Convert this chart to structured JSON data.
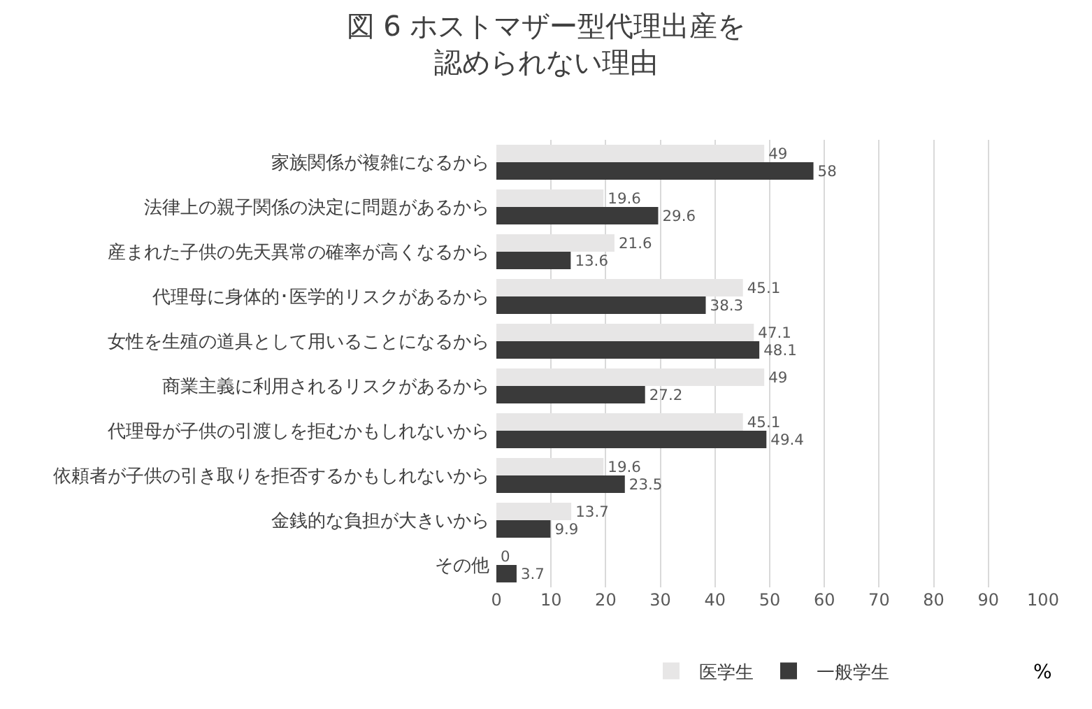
{
  "chart_data": {
    "type": "bar",
    "orientation": "horizontal",
    "title": "図 6 ホストマザー型代理出産を認められない理由",
    "xlabel": "%",
    "categories": [
      "家族関係が複雑になるから",
      "法律上の親子関係の決定に問題があるから",
      "産まれた子供の先天異常の確率が高くなるから",
      "代理母に身体的･医学的リスクがあるから",
      "女性を生殖の道具として用いることになるから",
      "商業主義に利用されるリスクがあるから",
      "代理母が子供の引渡しを拒むかもしれないから",
      "依頼者が子供の引き取りを拒否するかもしれないから",
      "金銭的な負担が大きいから",
      "その他"
    ],
    "series": [
      {
        "name": "医学生",
        "color": "#e7e6e6",
        "values": [
          49,
          19.6,
          21.6,
          45.1,
          47.1,
          49,
          45.1,
          19.6,
          13.7,
          0
        ]
      },
      {
        "name": "一般学生",
        "color": "#3a3a3a",
        "values": [
          58,
          29.6,
          13.6,
          38.3,
          48.1,
          27.2,
          49.4,
          23.5,
          9.9,
          3.7
        ]
      }
    ],
    "xlim": [
      0,
      100
    ],
    "xticks": [
      0,
      10,
      20,
      30,
      40,
      50,
      60,
      70,
      80,
      90,
      100
    ],
    "grid": "x",
    "legend": "bottom",
    "data_labels": true
  }
}
